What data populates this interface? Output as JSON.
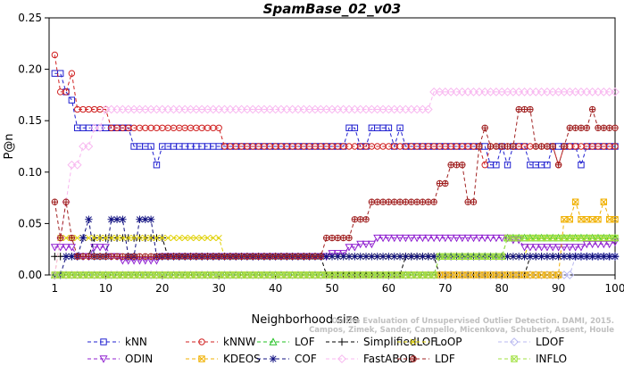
{
  "chart_data": {
    "type": "line",
    "title": "SpamBase_02_v03",
    "xlabel": "Neighborhood size",
    "ylabel": "P@n",
    "xlim": [
      0,
      100
    ],
    "ylim": [
      0,
      0.25
    ],
    "xticks": [
      1,
      10,
      20,
      30,
      40,
      50,
      60,
      70,
      80,
      90,
      100
    ],
    "yticks": [
      "0.00",
      "0.05",
      "0.10",
      "0.15",
      "0.20",
      "0.25"
    ],
    "grid": false,
    "legend_position": "bottom",
    "watermark": "Campos, Zimek, Sander, Campello, Micenkova, Schubert, Assent, Houle\nOn the Evaluation of Unsupervised Outlier Detection. DAMI, 2015.",
    "series": [
      {
        "name": "kNN",
        "color": "#2020d0",
        "marker": "square",
        "points": [
          [
            1,
            0.196
          ],
          [
            3,
            0.178
          ],
          [
            4,
            0.17
          ],
          [
            5,
            0.143
          ],
          [
            15,
            0.125
          ],
          [
            19,
            0.107
          ],
          [
            20,
            0.125
          ],
          [
            53,
            0.143
          ],
          [
            55,
            0.125
          ],
          [
            57,
            0.143
          ],
          [
            61,
            0.125
          ],
          [
            62,
            0.143
          ],
          [
            63,
            0.125
          ],
          [
            78,
            0.107
          ],
          [
            80,
            0.125
          ],
          [
            81,
            0.107
          ],
          [
            82,
            0.125
          ],
          [
            85,
            0.107
          ],
          [
            89,
            0.125
          ],
          [
            94,
            0.107
          ],
          [
            95,
            0.125
          ],
          [
            100,
            0.125
          ]
        ]
      },
      {
        "name": "kNNW",
        "color": "#d02020",
        "marker": "circle",
        "points": [
          [
            1,
            0.214
          ],
          [
            2,
            0.178
          ],
          [
            4,
            0.196
          ],
          [
            5,
            0.161
          ],
          [
            10,
            0.161
          ],
          [
            11,
            0.143
          ],
          [
            30,
            0.143
          ],
          [
            31,
            0.125
          ],
          [
            76,
            0.125
          ],
          [
            77,
            0.107
          ],
          [
            78,
            0.125
          ],
          [
            89,
            0.125
          ],
          [
            90,
            0.107
          ],
          [
            91,
            0.125
          ],
          [
            100,
            0.125
          ]
        ]
      },
      {
        "name": "LOF",
        "color": "#20c020",
        "marker": "triangle-up",
        "points": [
          [
            1,
            0.0
          ],
          [
            10,
            0.0
          ],
          [
            11,
            0.0
          ],
          [
            68,
            0.0
          ],
          [
            69,
            0.018
          ],
          [
            80,
            0.018
          ],
          [
            81,
            0.036
          ],
          [
            90,
            0.036
          ],
          [
            91,
            0.036
          ],
          [
            100,
            0.036
          ]
        ]
      },
      {
        "name": "SimplifiedLOF",
        "color": "#000000",
        "marker": "plus",
        "points": [
          [
            1,
            0.018
          ],
          [
            2,
            0.018
          ],
          [
            4,
            0.018
          ],
          [
            8,
            0.036
          ],
          [
            20,
            0.036
          ],
          [
            21,
            0.018
          ],
          [
            30,
            0.018
          ],
          [
            40,
            0.018
          ],
          [
            48,
            0.018
          ],
          [
            49,
            0.0
          ],
          [
            62,
            0.0
          ],
          [
            63,
            0.018
          ],
          [
            68,
            0.018
          ],
          [
            69,
            0.0
          ],
          [
            84,
            0.0
          ],
          [
            85,
            0.018
          ],
          [
            100,
            0.018
          ]
        ]
      },
      {
        "name": "LoOP",
        "color": "#e0d000",
        "marker": "x",
        "points": [
          [
            1,
            0.0
          ],
          [
            2,
            0.036
          ],
          [
            30,
            0.036
          ],
          [
            31,
            0.018
          ],
          [
            80,
            0.018
          ],
          [
            85,
            0.036
          ],
          [
            100,
            0.036
          ]
        ]
      },
      {
        "name": "LDOF",
        "color": "#b8b8f0",
        "marker": "diamond",
        "points": [
          [
            1,
            0.0
          ],
          [
            20,
            0.0
          ],
          [
            30,
            0.0
          ],
          [
            48,
            0.0
          ],
          [
            62,
            0.0
          ],
          [
            84,
            0.0
          ],
          [
            88,
            0.0
          ],
          [
            92,
            0.0
          ],
          [
            93,
            0.018
          ],
          [
            100,
            0.018
          ]
        ]
      },
      {
        "name": "ODIN",
        "color": "#9020d0",
        "marker": "triangle-down",
        "points": [
          [
            1,
            0.027
          ],
          [
            3,
            0.027
          ],
          [
            5,
            0.018
          ],
          [
            8,
            0.027
          ],
          [
            11,
            0.018
          ],
          [
            13,
            0.014
          ],
          [
            20,
            0.018
          ],
          [
            30,
            0.018
          ],
          [
            48,
            0.018
          ],
          [
            50,
            0.021
          ],
          [
            53,
            0.027
          ],
          [
            55,
            0.03
          ],
          [
            58,
            0.036
          ],
          [
            70,
            0.036
          ],
          [
            80,
            0.036
          ],
          [
            82,
            0.034
          ],
          [
            84,
            0.027
          ],
          [
            90,
            0.027
          ],
          [
            95,
            0.03
          ],
          [
            100,
            0.032
          ]
        ]
      },
      {
        "name": "KDEOS",
        "color": "#f0b000",
        "marker": "square-x",
        "points": [
          [
            1,
            0.0
          ],
          [
            90,
            0.0
          ],
          [
            91,
            0.054
          ],
          [
            92,
            0.054
          ],
          [
            93,
            0.071
          ],
          [
            94,
            0.054
          ],
          [
            97,
            0.054
          ],
          [
            98,
            0.071
          ],
          [
            99,
            0.054
          ],
          [
            100,
            0.054
          ]
        ]
      },
      {
        "name": "COF",
        "color": "#101080",
        "marker": "asterisk",
        "points": [
          [
            1,
            0.0
          ],
          [
            3,
            0.018
          ],
          [
            6,
            0.036
          ],
          [
            7,
            0.054
          ],
          [
            8,
            0.018
          ],
          [
            10,
            0.018
          ],
          [
            11,
            0.054
          ],
          [
            13,
            0.054
          ],
          [
            14,
            0.018
          ],
          [
            15,
            0.018
          ],
          [
            16,
            0.054
          ],
          [
            18,
            0.054
          ],
          [
            19,
            0.018
          ],
          [
            48,
            0.018
          ],
          [
            49,
            0.018
          ],
          [
            62,
            0.018
          ],
          [
            100,
            0.018
          ]
        ]
      },
      {
        "name": "FastABOD",
        "color": "#f8b8f0",
        "marker": "diamond",
        "points": [
          [
            1,
            0.0
          ],
          [
            2,
            0.036
          ],
          [
            3,
            0.071
          ],
          [
            4,
            0.107
          ],
          [
            5,
            0.107
          ],
          [
            6,
            0.125
          ],
          [
            7,
            0.125
          ],
          [
            8,
            0.143
          ],
          [
            10,
            0.161
          ],
          [
            67,
            0.161
          ],
          [
            68,
            0.178
          ],
          [
            100,
            0.178
          ]
        ]
      },
      {
        "name": "LDF",
        "color": "#a02020",
        "marker": "circle-plus",
        "points": [
          [
            1,
            0.071
          ],
          [
            2,
            0.036
          ],
          [
            3,
            0.071
          ],
          [
            4,
            0.036
          ],
          [
            5,
            0.018
          ],
          [
            20,
            0.018
          ],
          [
            48,
            0.018
          ],
          [
            49,
            0.036
          ],
          [
            53,
            0.036
          ],
          [
            54,
            0.054
          ],
          [
            56,
            0.054
          ],
          [
            57,
            0.071
          ],
          [
            68,
            0.071
          ],
          [
            69,
            0.089
          ],
          [
            71,
            0.107
          ],
          [
            74,
            0.071
          ],
          [
            76,
            0.125
          ],
          [
            77,
            0.143
          ],
          [
            78,
            0.125
          ],
          [
            80,
            0.125
          ],
          [
            83,
            0.161
          ],
          [
            86,
            0.125
          ],
          [
            90,
            0.107
          ],
          [
            91,
            0.125
          ],
          [
            92,
            0.143
          ],
          [
            96,
            0.161
          ],
          [
            97,
            0.143
          ],
          [
            100,
            0.143
          ]
        ]
      },
      {
        "name": "INFLO",
        "color": "#a0e040",
        "marker": "square-x",
        "points": [
          [
            1,
            0.0
          ],
          [
            68,
            0.0
          ],
          [
            69,
            0.018
          ],
          [
            80,
            0.018
          ],
          [
            81,
            0.036
          ],
          [
            100,
            0.036
          ]
        ]
      }
    ]
  }
}
